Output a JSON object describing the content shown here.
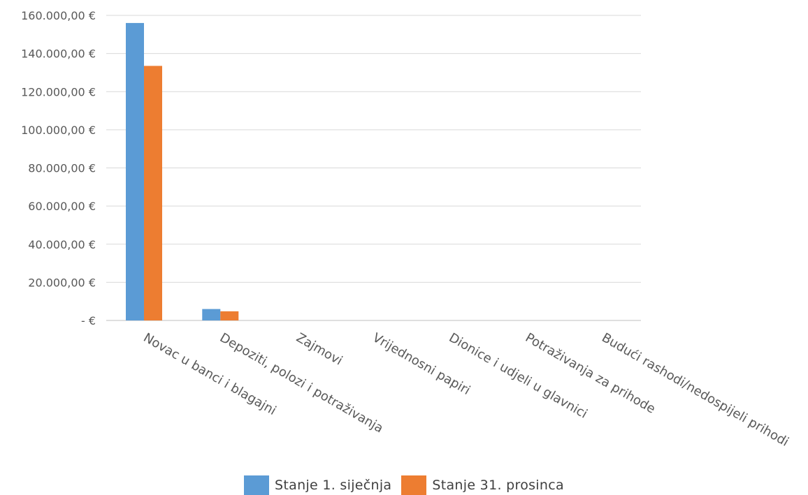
{
  "chart_data": {
    "type": "bar",
    "title": "",
    "xlabel": "",
    "ylabel": "",
    "ylim": [
      0,
      160000
    ],
    "ytick_values": [
      0,
      20000,
      40000,
      60000,
      80000,
      100000,
      120000,
      140000,
      160000
    ],
    "ytick_labels": [
      "-  €",
      "20.000,00 €",
      "40.000,00 €",
      "60.000,00 €",
      "80.000,00 €",
      "100.000,00 €",
      "120.000,00 €",
      "140.000,00 €",
      "160.000,00 €"
    ],
    "grid": true,
    "legend_position": "bottom",
    "categories": [
      "Novac u banci i blagajni",
      "Depoziti, polozi i potraživanja",
      "Zajmovi",
      "Vrijednosni papiri",
      "Dionice i udjeli u glavnici",
      "Potraživanja za prihode",
      "Budući rashodi/nedospijeli prihodi"
    ],
    "series": [
      {
        "name": "Stanje 1. siječnja",
        "color": "#5b9bd5",
        "values": [
          156000,
          6000,
          0,
          0,
          0,
          0,
          0
        ]
      },
      {
        "name": "Stanje 31. prosinca",
        "color": "#ed7d31",
        "values": [
          133500,
          4800,
          0,
          0,
          0,
          0,
          0
        ]
      }
    ]
  },
  "legend": {
    "series0_label": "Stanje 1. siječnja",
    "series1_label": "Stanje 31. prosinca"
  }
}
